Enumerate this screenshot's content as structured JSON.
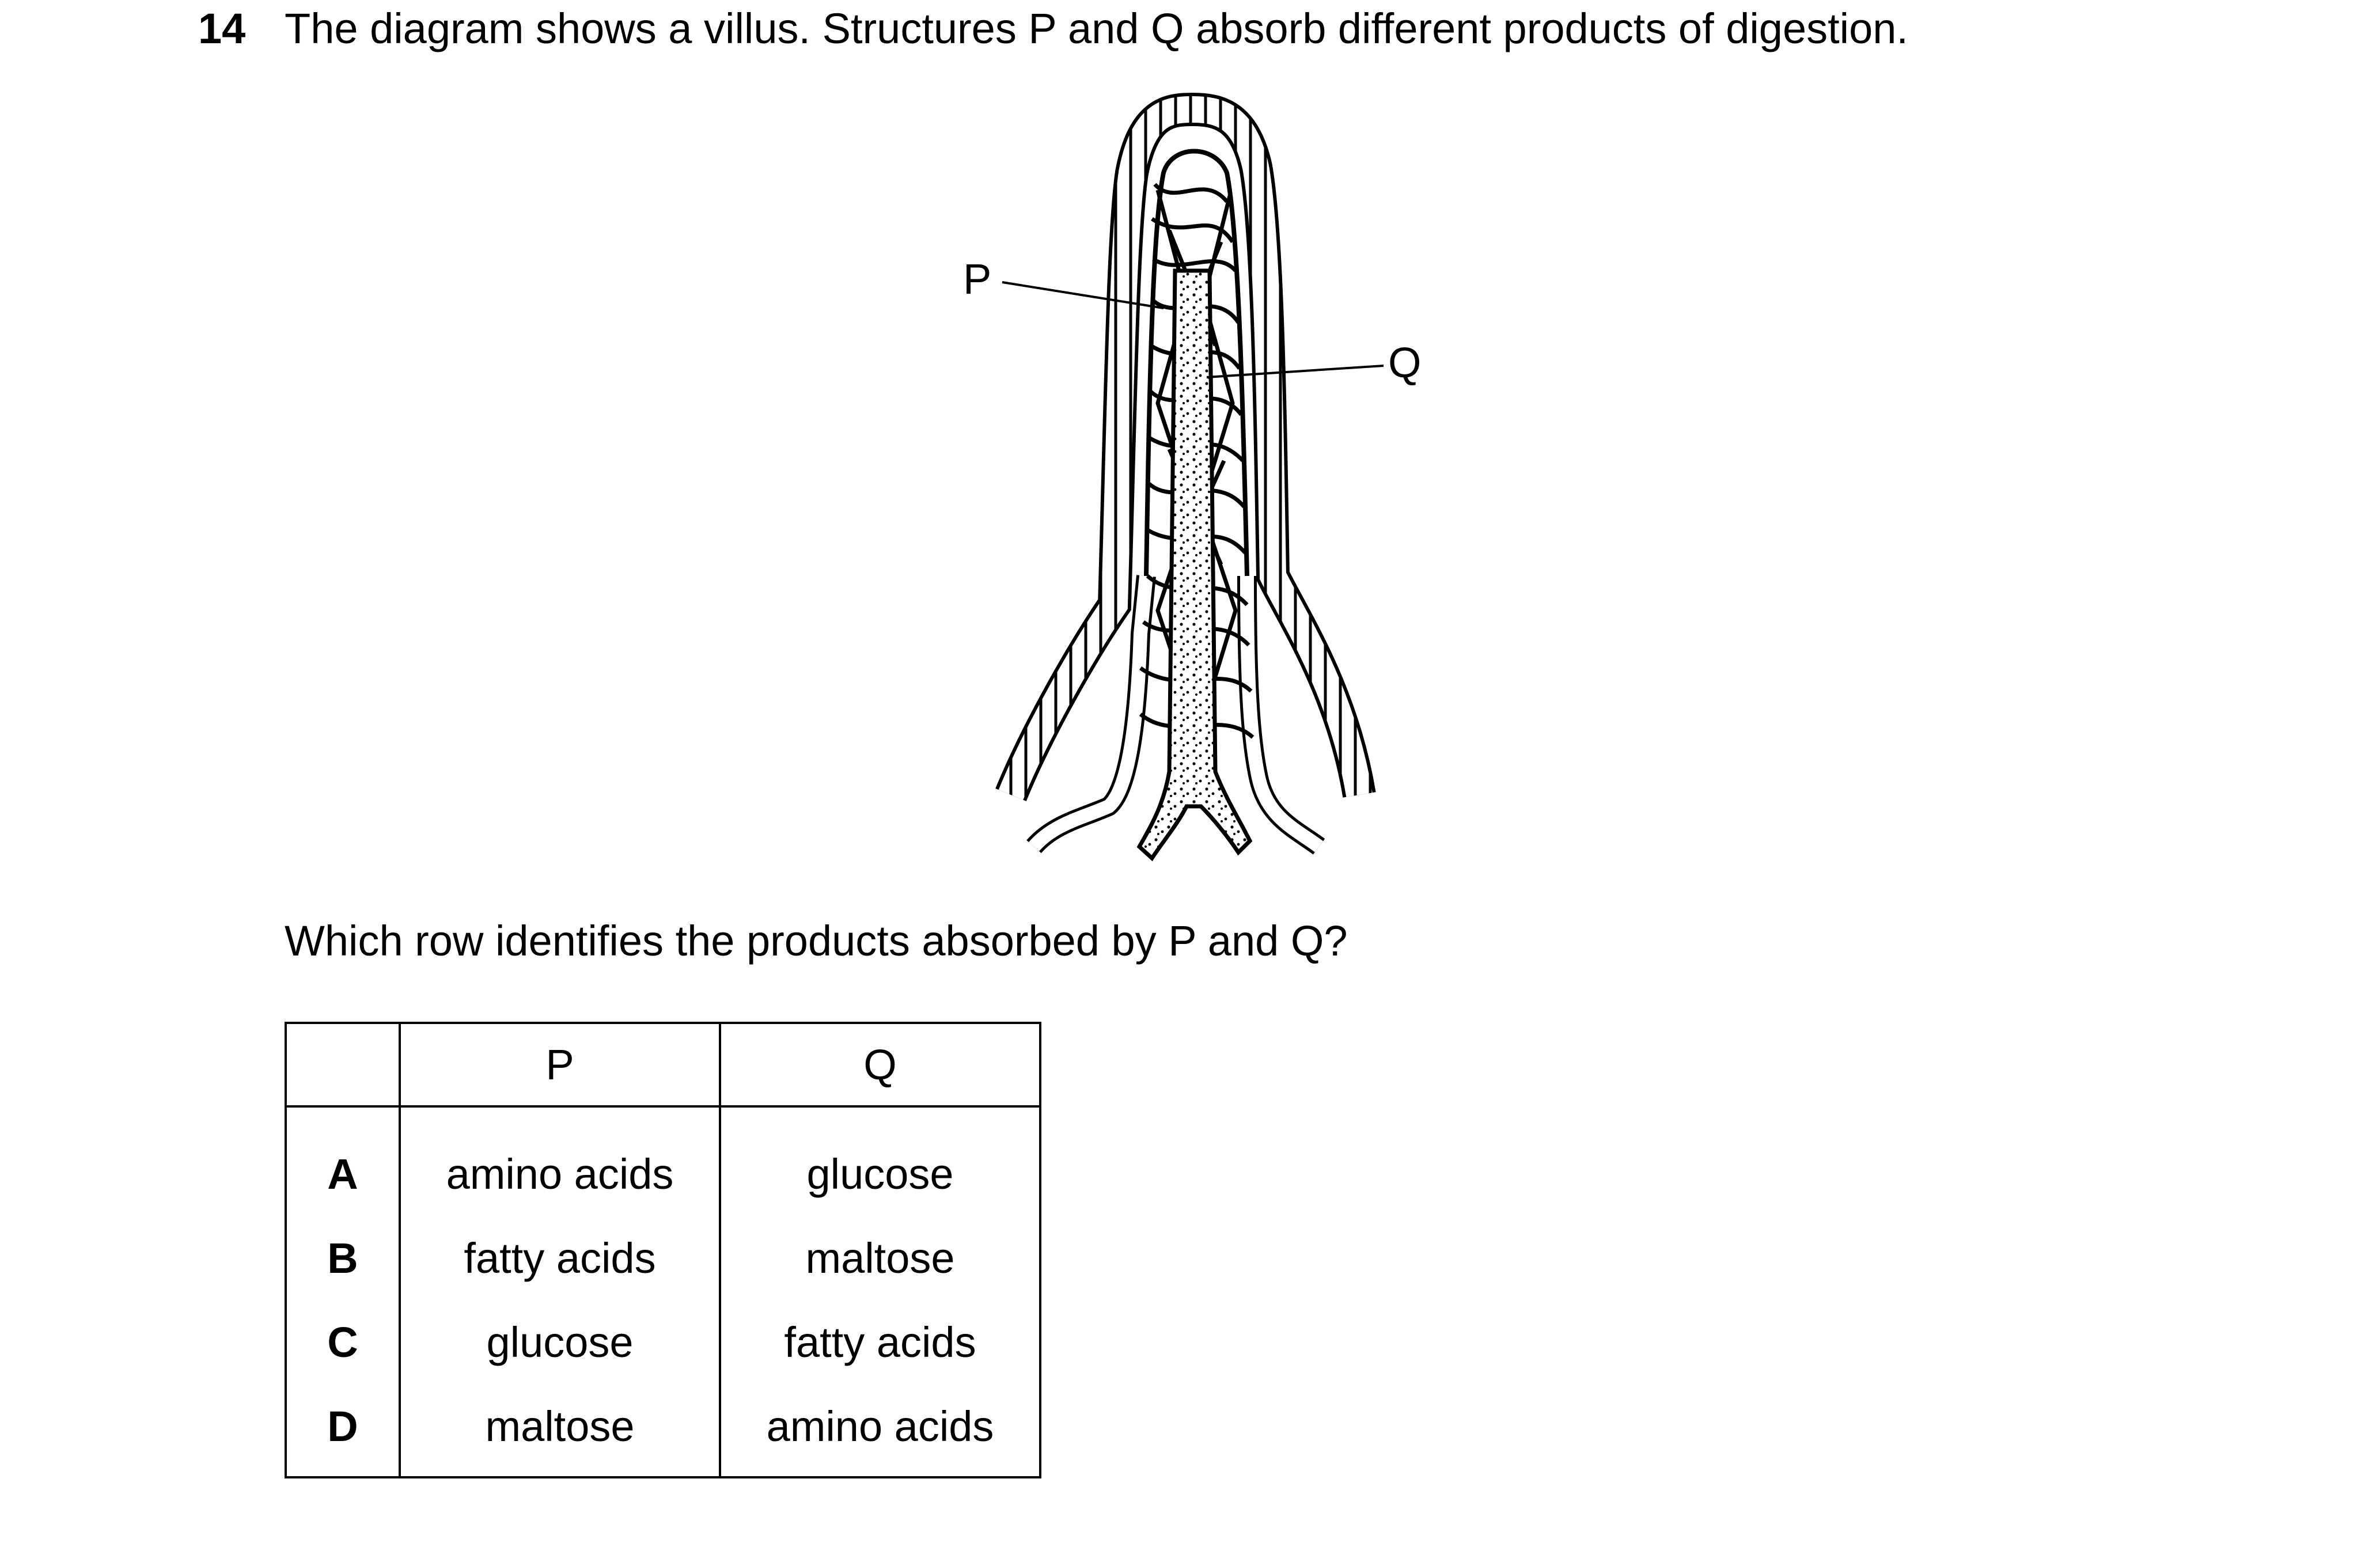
{
  "question": {
    "number": "14",
    "text": "The diagram shows a villus. Structures P and Q absorb different products of digestion."
  },
  "diagram": {
    "labels": {
      "p": "P",
      "q": "Q"
    }
  },
  "prompt": "Which row identifies the products absorbed by P and Q?",
  "table": {
    "headers": [
      "",
      "P",
      "Q"
    ],
    "rows": [
      {
        "letter": "A",
        "p": "amino acids",
        "q": "glucose"
      },
      {
        "letter": "B",
        "p": "fatty acids",
        "q": "maltose"
      },
      {
        "letter": "C",
        "p": "glucose",
        "q": "fatty acids"
      },
      {
        "letter": "D",
        "p": "maltose",
        "q": "amino acids"
      }
    ]
  }
}
